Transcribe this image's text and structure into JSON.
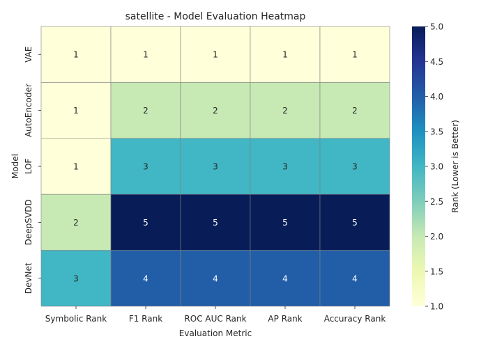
{
  "chart_data": {
    "type": "heatmap",
    "title": "satellite - Model Evaluation Heatmap",
    "xlabel": "Evaluation Metric",
    "ylabel": "Model",
    "columns": [
      "Symbolic Rank",
      "F1 Rank",
      "ROC AUC Rank",
      "AP Rank",
      "Accuracy Rank"
    ],
    "rows": [
      "VAE",
      "AutoEncoder",
      "LOF",
      "DeepSVDD",
      "DevNet"
    ],
    "values": [
      [
        1,
        1,
        1,
        1,
        1
      ],
      [
        1,
        2,
        2,
        2,
        2
      ],
      [
        1,
        3,
        3,
        3,
        3
      ],
      [
        2,
        5,
        5,
        5,
        5
      ],
      [
        3,
        4,
        4,
        4,
        4
      ]
    ],
    "colorbar": {
      "label": "Rank (Lower is Better)",
      "min": 1.0,
      "max": 5.0,
      "ticks": [
        "1.0",
        "1.5",
        "2.0",
        "2.5",
        "3.0",
        "3.5",
        "4.0",
        "4.5",
        "5.0"
      ],
      "colormap": "YlGnBu"
    }
  }
}
